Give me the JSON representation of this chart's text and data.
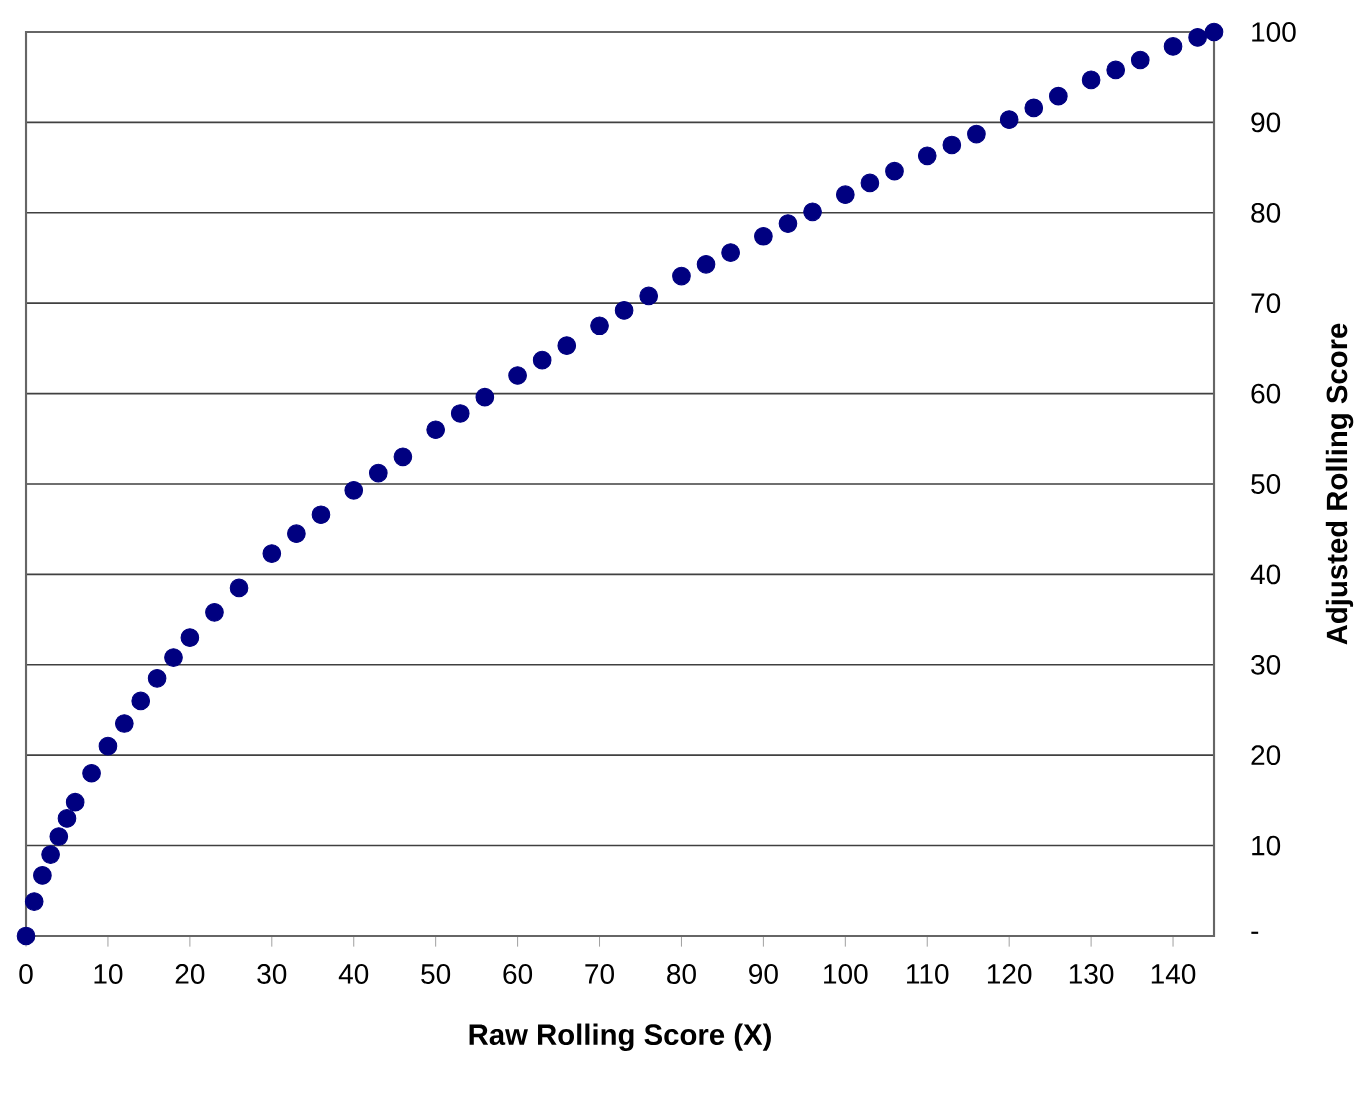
{
  "chart_data": {
    "type": "scatter",
    "xlabel": "Raw Rolling Score (X)",
    "ylabel": "Adjusted Rolling Score",
    "x": [
      0,
      1,
      2,
      3,
      4,
      5,
      6,
      8,
      10,
      12,
      14,
      16,
      18,
      20,
      23,
      26,
      30,
      33,
      36,
      40,
      43,
      46,
      50,
      53,
      56,
      60,
      63,
      66,
      70,
      73,
      76,
      80,
      83,
      86,
      90,
      93,
      96,
      100,
      103,
      106,
      110,
      113,
      116,
      120,
      123,
      126,
      130,
      133,
      136,
      140,
      143,
      145
    ],
    "values": [
      0,
      3.8,
      6.7,
      9,
      11,
      13,
      14.8,
      18,
      21,
      23.5,
      26,
      28.5,
      30.8,
      33,
      35.8,
      38.5,
      42.3,
      44.5,
      46.6,
      49.3,
      51.2,
      53,
      56,
      57.8,
      59.6,
      62,
      63.7,
      65.3,
      67.5,
      69.2,
      70.8,
      73,
      74.3,
      75.6,
      77.4,
      78.8,
      80.1,
      82,
      83.3,
      84.6,
      86.3,
      87.5,
      88.7,
      90.3,
      91.6,
      92.9,
      94.7,
      95.8,
      96.9,
      98.4,
      99.4,
      100
    ],
    "color": "#000080",
    "marker": "circle",
    "grid": "y",
    "xlim": [
      0,
      145
    ],
    "xticks": [
      0,
      10,
      20,
      30,
      40,
      50,
      60,
      70,
      80,
      90,
      100,
      110,
      120,
      130,
      140
    ],
    "ylim": [
      0,
      100
    ],
    "yticks": [
      {
        "value": 0,
        "label": "-"
      },
      10,
      20,
      30,
      40,
      50,
      60,
      70,
      80,
      90,
      100
    ]
  }
}
